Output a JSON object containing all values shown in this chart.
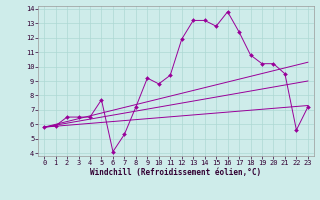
{
  "xlabel": "Windchill (Refroidissement éolien,°C)",
  "background_color": "#ceecea",
  "grid_color": "#aed8d4",
  "line_color": "#990099",
  "xlim": [
    -0.5,
    23.5
  ],
  "ylim": [
    3.8,
    14.2
  ],
  "xticks": [
    0,
    1,
    2,
    3,
    4,
    5,
    6,
    7,
    8,
    9,
    10,
    11,
    12,
    13,
    14,
    15,
    16,
    17,
    18,
    19,
    20,
    21,
    22,
    23
  ],
  "yticks": [
    4,
    5,
    6,
    7,
    8,
    9,
    10,
    11,
    12,
    13,
    14
  ],
  "main_series": {
    "x": [
      0,
      1,
      2,
      3,
      4,
      5,
      6,
      7,
      8,
      9,
      10,
      11,
      12,
      13,
      14,
      15,
      16,
      17,
      18,
      19,
      20,
      21,
      22,
      23
    ],
    "y": [
      5.8,
      5.9,
      6.5,
      6.5,
      6.5,
      7.7,
      4.1,
      5.3,
      7.2,
      9.2,
      8.8,
      9.4,
      11.9,
      13.2,
      13.2,
      12.8,
      13.8,
      12.4,
      10.8,
      10.2,
      10.2,
      9.5,
      5.6,
      7.2
    ]
  },
  "reg_lines": [
    {
      "x": [
        0,
        23
      ],
      "y": [
        5.8,
        10.3
      ]
    },
    {
      "x": [
        0,
        23
      ],
      "y": [
        5.8,
        9.0
      ]
    },
    {
      "x": [
        0,
        23
      ],
      "y": [
        5.8,
        7.3
      ]
    }
  ]
}
